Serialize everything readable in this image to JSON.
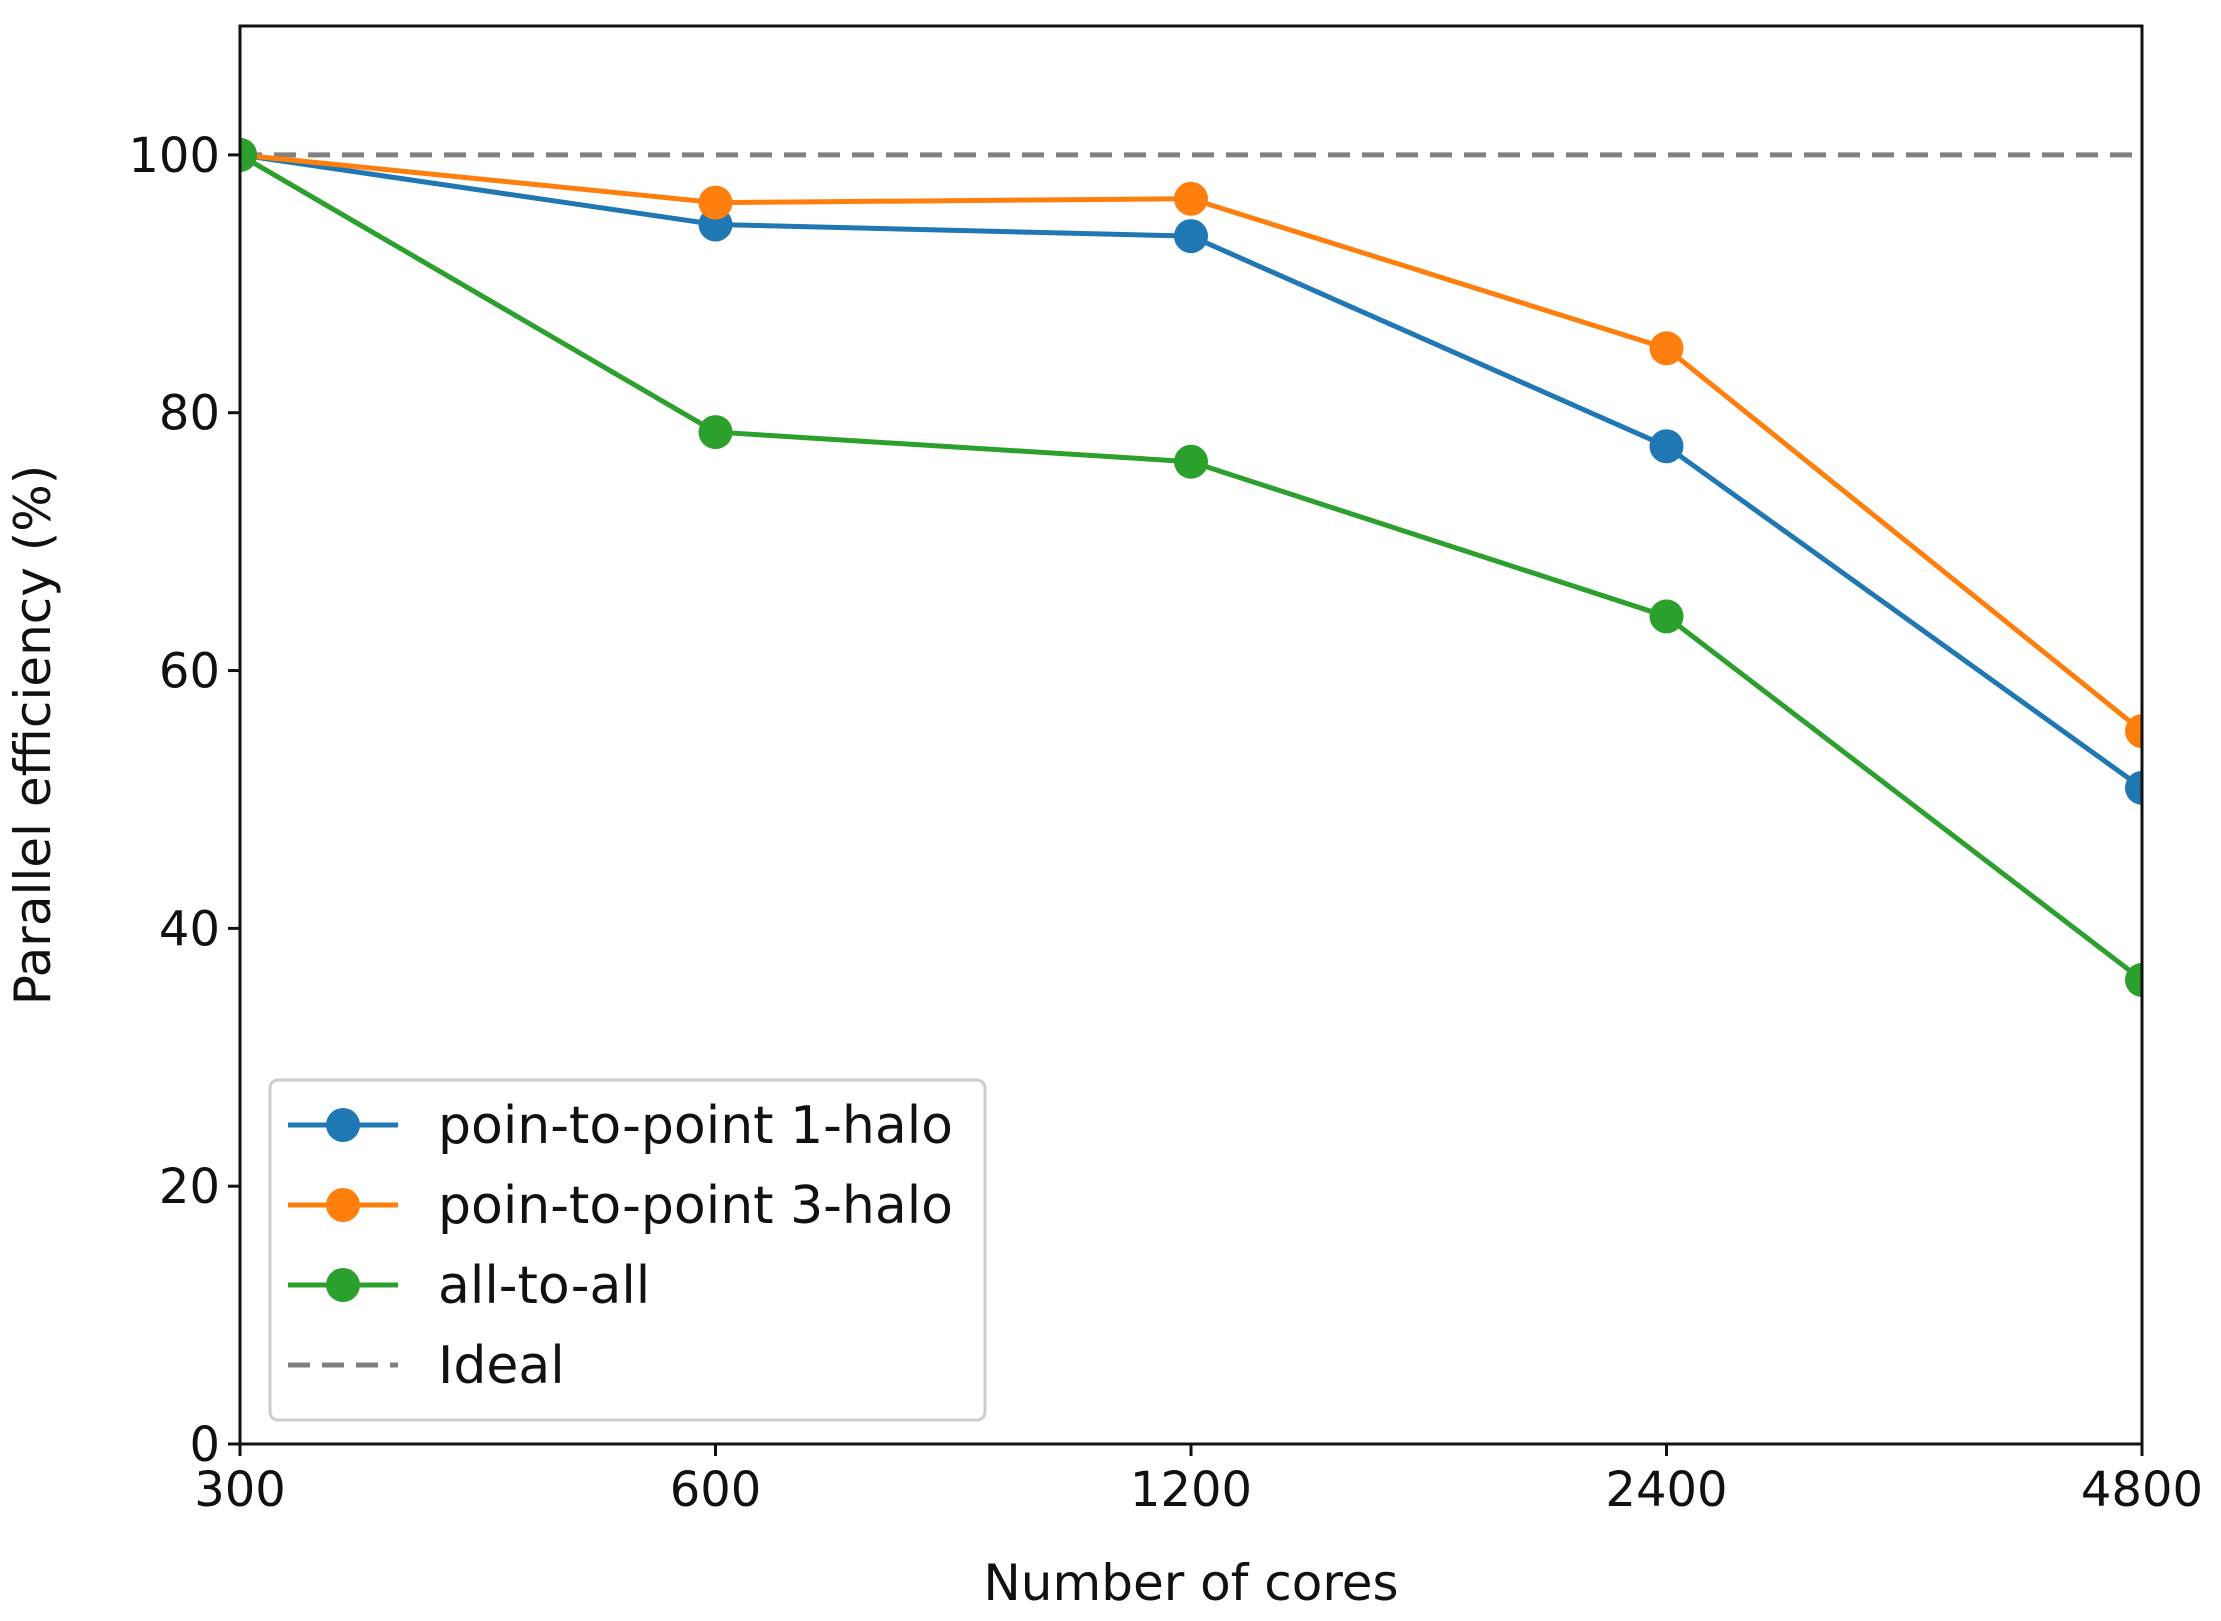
{
  "chart_data": {
    "type": "line",
    "title": "",
    "xlabel": "Number of cores",
    "ylabel": "Parallel efficiency (%)",
    "categories": [
      "300",
      "600",
      "1200",
      "2400",
      "4800"
    ],
    "ylim": [
      0,
      110
    ],
    "yticks": [
      0,
      20,
      40,
      60,
      80,
      100
    ],
    "grid": false,
    "legend_position": "lower-left",
    "series": [
      {
        "name": "poin-to-point 1-halo",
        "color": "#1f77b4",
        "style": "solid-marker",
        "values": [
          100,
          94.6,
          93.7,
          77.4,
          50.9
        ]
      },
      {
        "name": "poin-to-point 3-halo",
        "color": "#ff7f0e",
        "style": "solid-marker",
        "values": [
          100,
          96.3,
          96.6,
          85.0,
          55.3
        ]
      },
      {
        "name": "all-to-all",
        "color": "#2ca02c",
        "style": "solid-marker",
        "values": [
          100,
          78.5,
          76.2,
          64.2,
          36.0
        ]
      },
      {
        "name": "Ideal",
        "color": "#808080",
        "style": "dashed",
        "values": [
          100,
          100,
          100,
          100,
          100
        ]
      }
    ]
  }
}
